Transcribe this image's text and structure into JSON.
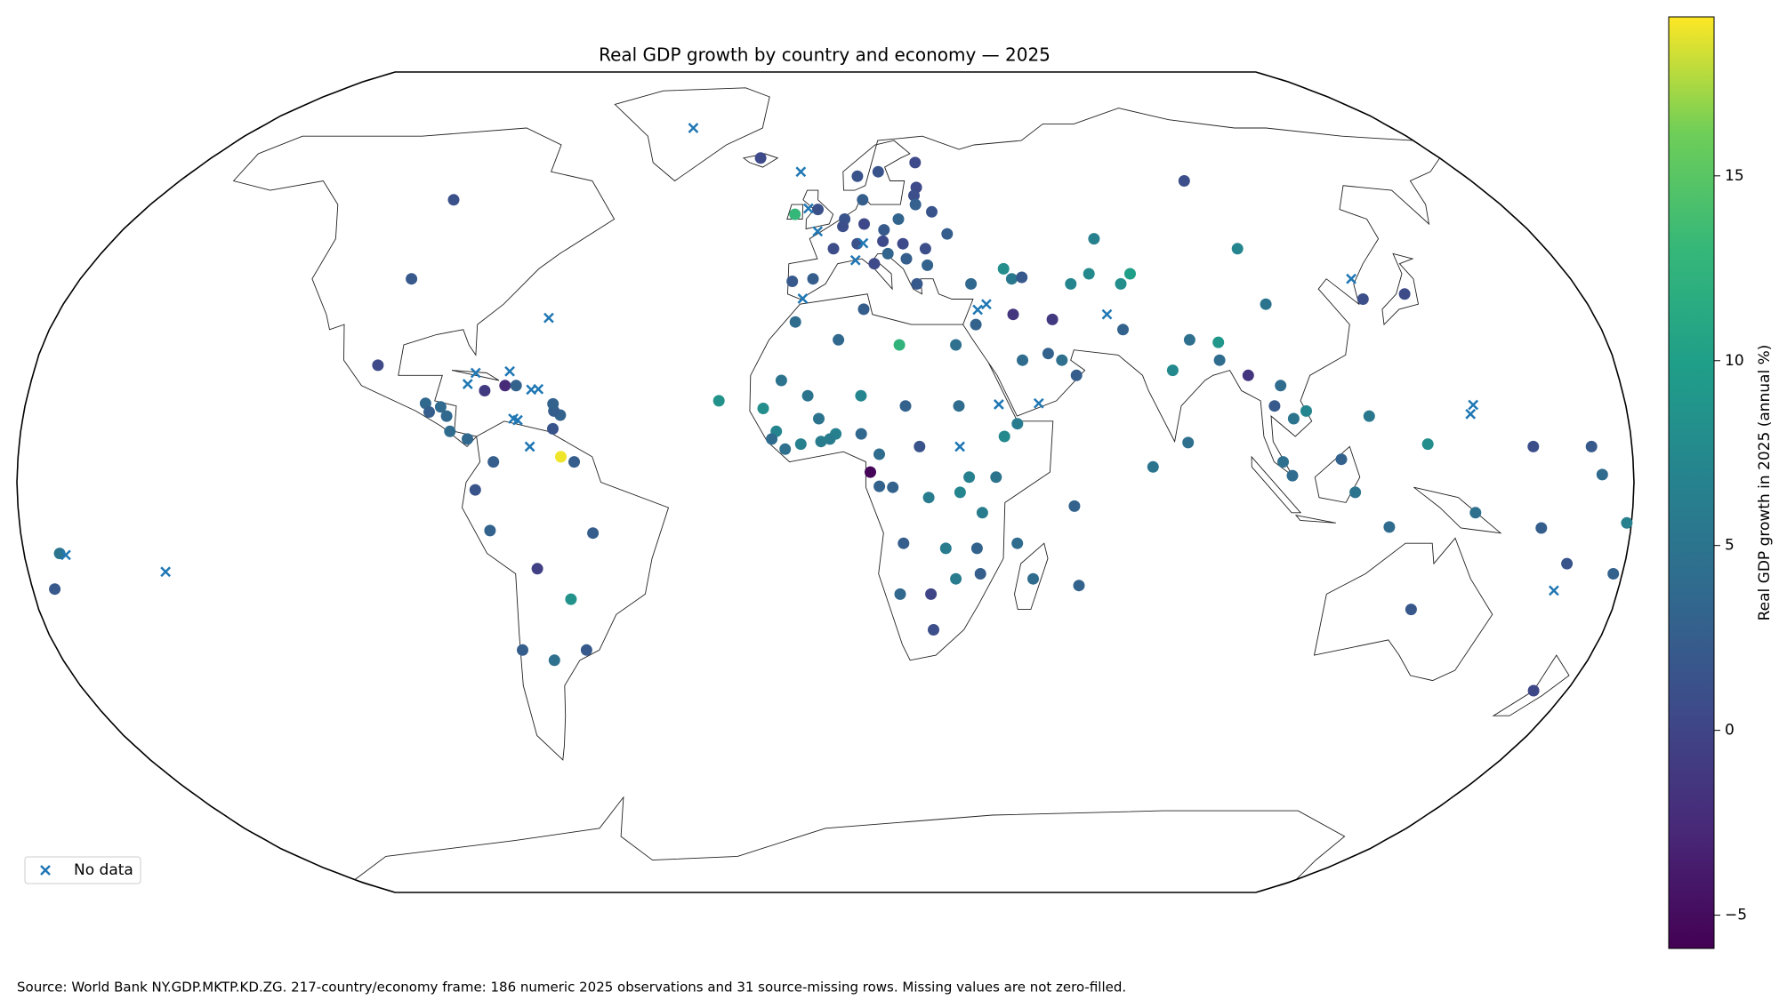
{
  "chart_data": {
    "type": "scatter_map",
    "title": "Real GDP growth by country and economy — 2025",
    "colorbar_label": "Real GDP growth in 2025 (annual %)",
    "cmap": "viridis",
    "clim": [
      -5.9,
      19.3
    ],
    "cticks": [
      {
        "value": -5,
        "label": "−5"
      },
      0,
      5,
      10,
      15
    ],
    "legend_loc": "lower left",
    "points": {
      "lon": [
        -3,
        -8,
        2,
        10,
        12,
        -2,
        5,
        4.5,
        15,
        9,
        26,
        10,
        19,
        15,
        14.5,
        19.5,
        25,
        25,
        22,
        35,
        31,
        28,
        100,
        25,
        24,
        24,
        8,
        -19,
        20,
        15.5,
        -8,
        45,
        54,
        53,
        44,
        35,
        30,
        57,
        51,
        68,
        64,
        71,
        74,
        59,
        45,
        43.5,
        47.5,
        69,
        79,
        90,
        84,
        90.5,
        96,
        101,
        103,
        105,
        108,
        102,
        118,
        122,
        104,
        103,
        127.5,
        138,
        81,
        73,
        104,
        115,
        126,
        3,
        -7,
        9,
        17,
        -10,
        -4,
        8,
        18,
        30,
        40,
        38,
        30,
        35,
        32,
        23,
        15,
        12,
        12,
        8,
        -1,
        -5.5,
        -14,
        -11,
        -12,
        -9,
        2.3,
        1,
        -1.5,
        -24,
        17.5,
        27,
        29.5,
        34,
        35,
        47,
        24,
        17,
        25,
        57.5,
        55.5,
        43,
        10,
        21,
        43,
        -100,
        -100,
        -102,
        -90,
        -86.5,
        -85,
        -89,
        -84,
        -80,
        -74,
        -78,
        -75,
        -65,
        -52,
        -71,
        -64,
        -56,
        -58,
        -59,
        -56,
        -77,
        -72.5,
        -70,
        -61,
        -59.5,
        -61,
        -61.3,
        134,
        172,
        145,
        160,
        178,
        167,
        173,
        171,
        158,
        134.5,
        -172,
        -175,
        179
      ],
      "lat": [
        40,
        39.5,
        46,
        51,
        43,
        54,
        52,
        50.5,
        62,
        61,
        64,
        56,
        52,
        49.8,
        47.5,
        47,
        46,
        42.7,
        39,
        39,
        49,
        53.5,
        60,
        58.6,
        56.9,
        55,
        47,
        65,
        44,
        45,
        53,
        24,
        24,
        32,
        33,
        31,
        27,
        21,
        25.3,
        48,
        41,
        39,
        41,
        39,
        40,
        42,
        40.3,
        30,
        22,
        24,
        28,
        27.5,
        21,
        15,
        19,
        12.5,
        14,
        4,
        -2,
        13,
        35,
        46,
        36,
        37,
        7.8,
        3,
        1.3,
        4.5,
        -8.8,
        28,
        31.5,
        34,
        27,
        20,
        17,
        17,
        15,
        15,
        9,
        1,
        -2,
        -6,
        1,
        -3,
        -1,
        -0.8,
        5.5,
        9.5,
        8,
        7.5,
        14.5,
        10,
        8.5,
        6.5,
        9.5,
        8.5,
        12.5,
        16,
        -12,
        -13,
        -19,
        -13,
        -18,
        -19,
        -22,
        -22,
        -29,
        -20.3,
        -4.7,
        -12,
        2,
        7,
        11.5,
        56,
        40,
        23,
        15.5,
        14.8,
        13,
        13.8,
        10,
        8.5,
        4,
        -1.5,
        -9.5,
        -17,
        -10,
        -33,
        -35,
        -33,
        -23,
        5,
        4,
        18,
        19,
        19,
        10.5,
        13.2,
        14,
        15.4,
        -25,
        -41,
        -6,
        -9,
        -18,
        -16,
        1.5,
        7,
        7,
        7.5,
        -14,
        -21,
        -8
      ],
      "values": [
        2.5,
        2,
        0.8,
        0.3,
        0.5,
        1.2,
        1.5,
        1,
        1.5,
        1.5,
        0.5,
        2.5,
        3.2,
        2,
        0.5,
        0.5,
        1,
        3,
        2,
        3.5,
        2.5,
        1.5,
        1,
        0.5,
        1,
        2.8,
        1.2,
        0.5,
        2.5,
        3.2,
        13,
        4,
        4.5,
        -1,
        -1.5,
        3,
        4.5,
        2.5,
        3,
        6.5,
        7.5,
        8,
        10,
        7,
        5.5,
        8,
        2,
        3,
        7.5,
        4,
        4.5,
        9,
        -1.5,
        2,
        4,
        5,
        7,
        4.5,
        5,
        5.5,
        5,
        7,
        1,
        0.7,
        4.5,
        5,
        4,
        3,
        4,
        3.5,
        4,
        2.5,
        12.5,
        5,
        5,
        7,
        3,
        4,
        7.5,
        5,
        7,
        6,
        6.5,
        6,
        3,
        3,
        4,
        3.5,
        6,
        6.5,
        8,
        7,
        4,
        4.5,
        6.5,
        6,
        5,
        8.5,
        2.5,
        6,
        6,
        3,
        2.5,
        4,
        0,
        3.5,
        1,
        3,
        3,
        4,
        -5.5,
        1.5,
        6,
        1.2,
        2,
        0.5,
        3.5,
        3.8,
        3.5,
        2.5,
        4,
        3.5,
        2.5,
        1.5,
        3,
        -0.5,
        2.5,
        2.5,
        4.5,
        2,
        8.5,
        19,
        2.5,
        -1,
        -2.5,
        3,
        1.5,
        3,
        2.5,
        3,
        1.8,
        0.3,
        4.5,
        2.5,
        3,
        1.5,
        4,
        2,
        1,
        8,
        5,
        2,
        6.5
      ]
    },
    "missing": {
      "name": "No data",
      "color": "#1f77b4",
      "lon": [
        -42,
        -7,
        -4.5,
        -2,
        -5.4,
        7.4,
        9.5,
        38,
        35.8,
        48,
        39,
        30,
        66,
        127,
        144.8,
        145.7,
        165.5,
        -79.5,
        -81,
        -71.8,
        -64.7,
        -64.9,
        -66.5,
        -70,
        -69,
        -170.7,
        -149,
        -66
      ],
      "lat": [
        72,
        62,
        54.2,
        49.5,
        36.1,
        43.7,
        47.1,
        35,
        33.9,
        15.5,
        15.3,
        7,
        33,
        40,
        13.4,
        15.2,
        -21.3,
        21.5,
        19.3,
        21.8,
        32.3,
        18.3,
        18.2,
        12.5,
        12.2,
        -14.3,
        -17.6,
        7
      ]
    },
    "source": "Source: World Bank NY.GDP.MKTP.KD.ZG. 217-country/economy frame: 186 numeric 2025 observations and 31 source-missing rows. Missing values are not zero-filled."
  }
}
